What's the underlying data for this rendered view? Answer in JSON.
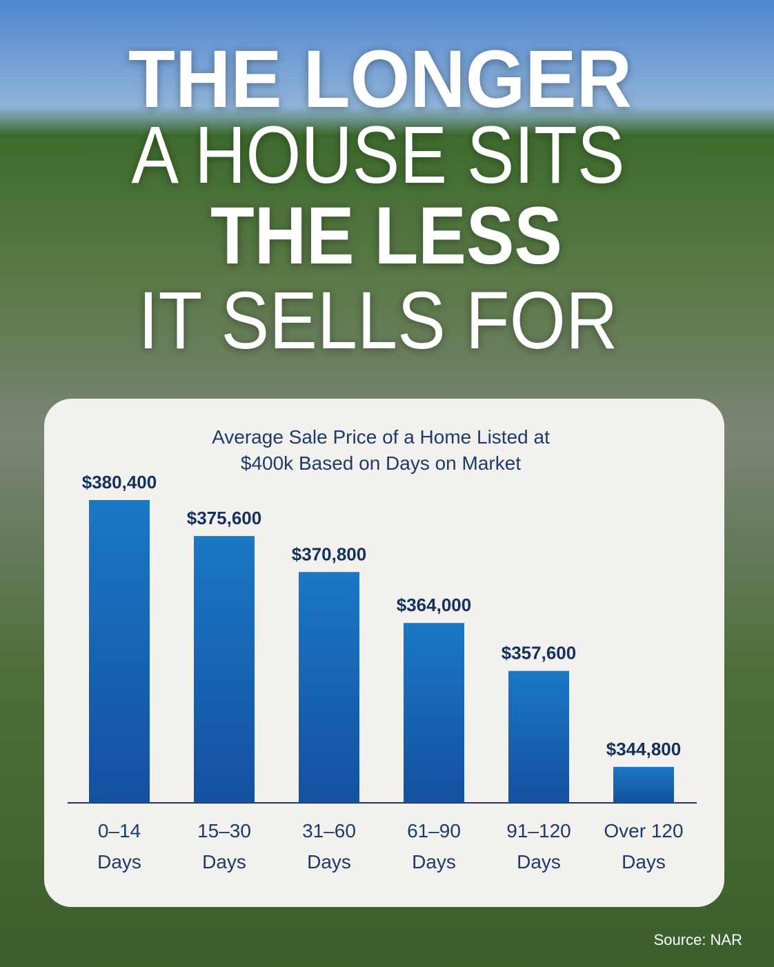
{
  "header": {
    "title_lines": [
      "THE LONGER",
      "A HOUSE SITS",
      "THE LESS",
      "IT SELLS FOR"
    ]
  },
  "chart_data": {
    "type": "bar",
    "title": "Average Sale Price of a Home Listed at\n$400k Based on Days on Market",
    "categories": [
      "0–14\nDays",
      "15–30\nDays",
      "31–60\nDays",
      "61–90\nDays",
      "91–120\nDays",
      "Over 120\nDays"
    ],
    "values": [
      380400,
      375600,
      370800,
      364000,
      357600,
      344800
    ],
    "value_labels": [
      "$380,400",
      "$375,600",
      "$370,800",
      "$364,000",
      "$357,600",
      "$344,800"
    ],
    "color": "#1766b4",
    "ylim": [
      340000,
      385000
    ]
  },
  "footer": {
    "source": "Source: NAR"
  }
}
